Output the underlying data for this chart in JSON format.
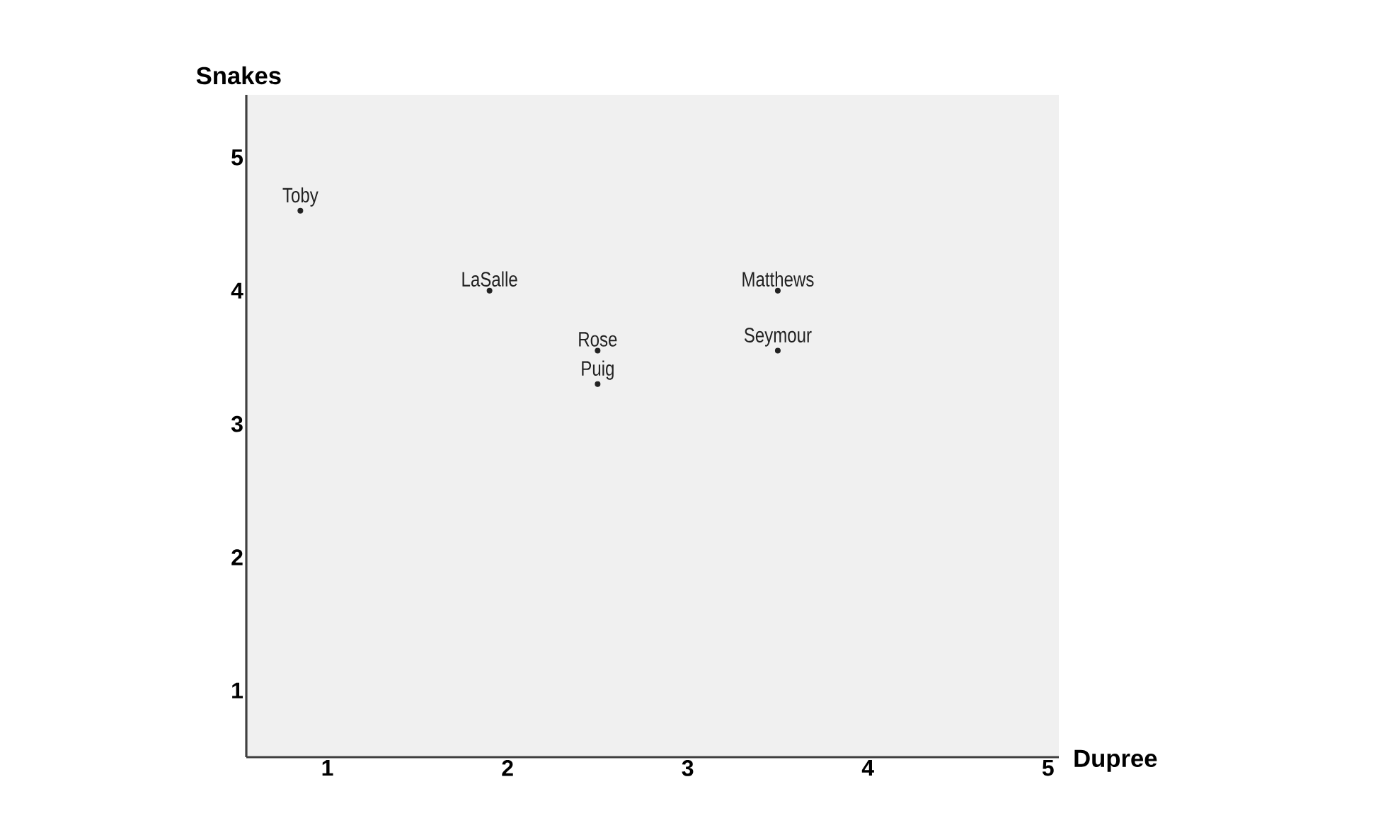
{
  "chart_data": {
    "type": "scatter",
    "xlabel": "Dupree",
    "ylabel": "Snakes",
    "xlim": [
      0.55,
      5.06
    ],
    "ylim": [
      0.5,
      5.47
    ],
    "xticks": [
      1,
      2,
      3,
      4,
      5
    ],
    "yticks": [
      1,
      2,
      3,
      4,
      5
    ],
    "marker": "circle",
    "series": [
      {
        "color": "#222222",
        "x": [
          0.85,
          1.9,
          2.5,
          2.5,
          3.5,
          3.5
        ],
        "values": [
          4.6,
          4.0,
          3.55,
          3.3,
          4.0,
          3.55
        ],
        "value_labels": [
          "Toby",
          "LaSalle",
          "Rose",
          "Puig",
          "Matthews",
          "Seymour"
        ]
      }
    ]
  }
}
